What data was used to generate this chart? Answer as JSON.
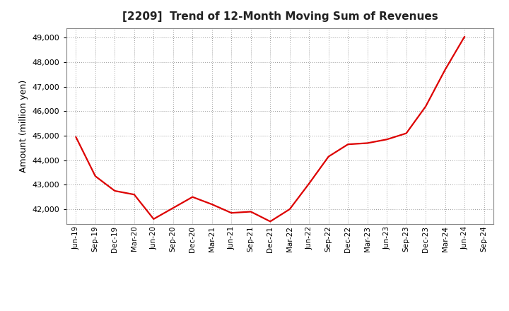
{
  "title": "[2209]  Trend of 12-Month Moving Sum of Revenues",
  "ylabel": "Amount (million yen)",
  "line_color": "#dd0000",
  "background_color": "#ffffff",
  "plot_bg_color": "#ffffff",
  "grid_color": "#999999",
  "ylim": [
    41400,
    49400
  ],
  "yticks": [
    42000,
    43000,
    44000,
    45000,
    46000,
    47000,
    48000,
    49000
  ],
  "x_labels": [
    "Jun-19",
    "Sep-19",
    "Dec-19",
    "Mar-20",
    "Jun-20",
    "Sep-20",
    "Dec-20",
    "Mar-21",
    "Jun-21",
    "Sep-21",
    "Dec-21",
    "Mar-22",
    "Jun-22",
    "Sep-22",
    "Dec-22",
    "Mar-23",
    "Jun-23",
    "Sep-23",
    "Dec-23",
    "Mar-24",
    "Jun-24",
    "Sep-24"
  ],
  "values": [
    44950,
    43350,
    42750,
    42600,
    41600,
    42050,
    42500,
    42200,
    41850,
    41900,
    41500,
    42000,
    43050,
    44150,
    44650,
    44700,
    44850,
    45100,
    46200,
    47700,
    49050,
    null
  ],
  "title_fontsize": 11,
  "axis_label_fontsize": 9,
  "tick_fontsize": 8,
  "xtick_fontsize": 7.5
}
